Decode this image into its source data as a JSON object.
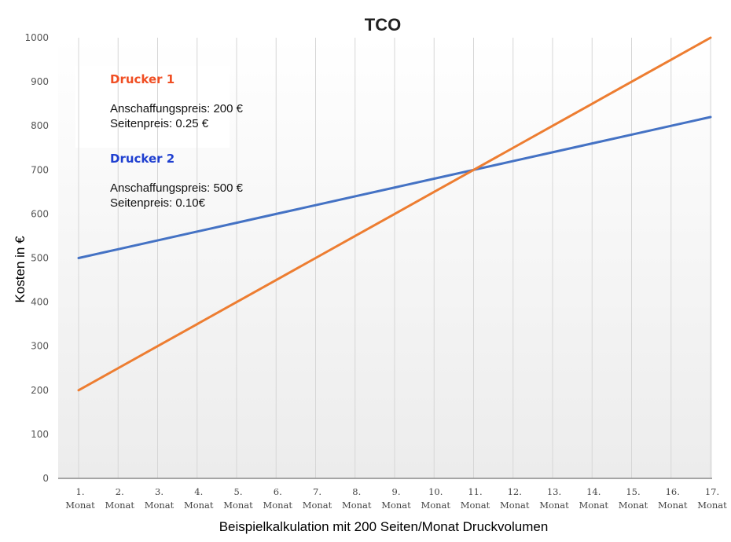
{
  "chart_data": {
    "type": "line",
    "title": "TCO",
    "xlabel": "Beispielkalkulation mit 200 Seiten/Monat Druckvolumen",
    "ylabel": "Kosten in €",
    "ylim": [
      0,
      1000
    ],
    "yticks": [
      "0",
      "100",
      "200",
      "300",
      "400",
      "500",
      "600",
      "700",
      "800",
      "900",
      "1000"
    ],
    "categories": [
      [
        "1.",
        "Monat"
      ],
      [
        "2.",
        "Monat"
      ],
      [
        "3.",
        "Monat"
      ],
      [
        "4.",
        "Monat"
      ],
      [
        "5.",
        "Monat"
      ],
      [
        "6.",
        "Monat"
      ],
      [
        "7.",
        "Monat"
      ],
      [
        "8.",
        "Monat"
      ],
      [
        "9.",
        "Monat"
      ],
      [
        "10.",
        "Monat"
      ],
      [
        "11.",
        "Monat"
      ],
      [
        "12.",
        "Monat"
      ],
      [
        "13.",
        "Monat"
      ],
      [
        "14.",
        "Monat"
      ],
      [
        "15.",
        "Monat"
      ],
      [
        "16.",
        "Monat"
      ],
      [
        "17.",
        "Monat"
      ]
    ],
    "series": [
      {
        "name": "Drucker 1",
        "color": "#ed7d31",
        "values": [
          200,
          250,
          300,
          350,
          400,
          450,
          500,
          550,
          600,
          650,
          700,
          750,
          800,
          850,
          900,
          950,
          1000
        ]
      },
      {
        "name": "Drucker 2",
        "color": "#4472c4",
        "values": [
          500,
          520,
          540,
          560,
          580,
          600,
          620,
          640,
          660,
          680,
          700,
          720,
          740,
          760,
          780,
          800,
          820
        ]
      }
    ],
    "grid": "vertical",
    "legend_placement": "top-left",
    "legend": [
      {
        "heading": "Drucker 1",
        "heading_color": "#f04e23",
        "lines": [
          "Anschaffungspreis: 200 €",
          "Seitenpreis: 0.25 €"
        ]
      },
      {
        "heading": "Drucker 2",
        "heading_color": "#1f3fd0",
        "lines": [
          "Anschaffungspreis: 500 €",
          "Seitenpreis: 0.10€"
        ]
      }
    ]
  }
}
